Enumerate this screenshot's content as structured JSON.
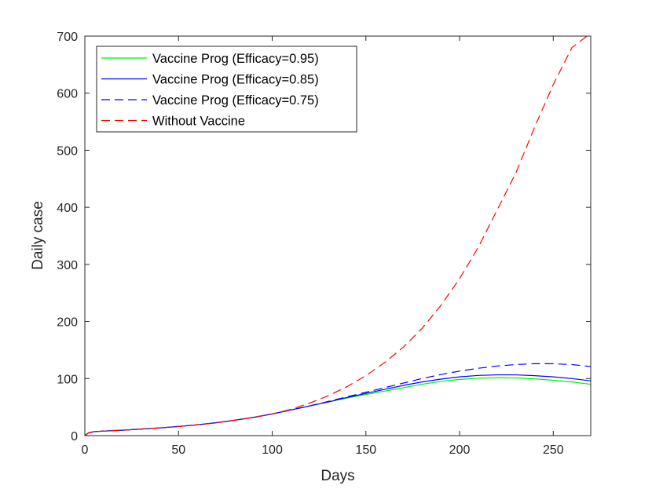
{
  "chart_data": {
    "type": "line",
    "title": "",
    "xlabel": "Days",
    "ylabel": "Daily case",
    "xlim": [
      0,
      270
    ],
    "ylim": [
      0,
      700
    ],
    "xticks": [
      0,
      50,
      100,
      150,
      200,
      250
    ],
    "yticks": [
      0,
      100,
      200,
      300,
      400,
      500,
      600,
      700
    ],
    "grid": false,
    "legend_position": "top-left",
    "x": [
      0,
      2,
      5,
      10,
      20,
      30,
      40,
      50,
      60,
      70,
      80,
      90,
      100,
      110,
      120,
      130,
      140,
      150,
      160,
      170,
      180,
      190,
      200,
      210,
      220,
      230,
      240,
      250,
      260,
      270
    ],
    "series": [
      {
        "name": "Vaccine Prog (Efficacy=0.95)",
        "color": "#00ee00",
        "dash": "solid",
        "values": [
          0,
          5,
          7,
          8,
          9.5,
          11.5,
          13.5,
          16,
          19,
          22.5,
          27,
          32,
          38,
          45,
          52,
          59,
          66,
          72,
          78,
          84,
          90,
          95,
          98.5,
          100.5,
          101.5,
          101,
          99.5,
          97,
          94,
          90
        ]
      },
      {
        "name": "Vaccine Prog (Efficacy=0.85)",
        "color": "#0000ff",
        "dash": "solid",
        "values": [
          0,
          5,
          7,
          8,
          9.5,
          11.5,
          13.5,
          16,
          19,
          22.5,
          27,
          32,
          38,
          45,
          52,
          59,
          67,
          74,
          81,
          88,
          94,
          99,
          103,
          105.5,
          106.5,
          106.5,
          105,
          103,
          100,
          96
        ]
      },
      {
        "name": "Vaccine Prog (Efficacy=0.75)",
        "color": "#0000ff",
        "dash": "dashed",
        "values": [
          0,
          5,
          7,
          8,
          9.5,
          11.5,
          13.5,
          16,
          19,
          22.5,
          27,
          32,
          38,
          45,
          52,
          60,
          68,
          76,
          84,
          92,
          100,
          107,
          113,
          118,
          122,
          124.5,
          126,
          126,
          124.5,
          121
        ]
      },
      {
        "name": "Without Vaccine",
        "color": "#ff0000",
        "dash": "dashed",
        "values": [
          0,
          5,
          7,
          8,
          9.5,
          11.5,
          13.5,
          16,
          19,
          22.5,
          27,
          32,
          38,
          46,
          57,
          70,
          86,
          105,
          128,
          155,
          188,
          228,
          275,
          330,
          395,
          460,
          540,
          615,
          680,
          705
        ]
      }
    ]
  }
}
